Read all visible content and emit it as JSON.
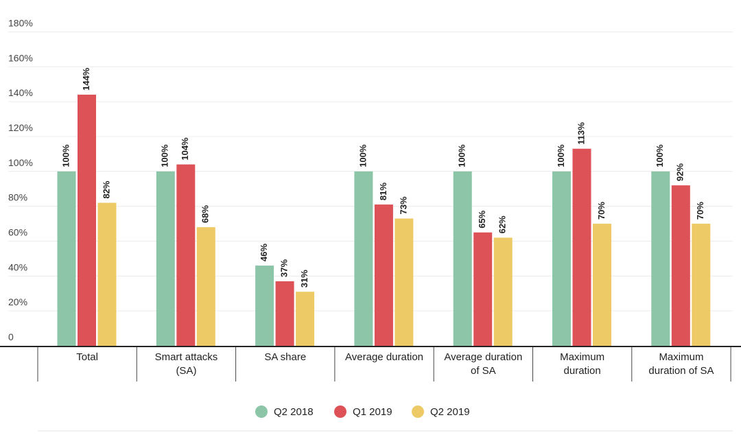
{
  "chart_data": {
    "type": "bar",
    "categories": [
      [
        "Total"
      ],
      [
        "Smart attacks",
        "(SA)"
      ],
      [
        "SA share"
      ],
      [
        "Average duration"
      ],
      [
        "Average duration",
        "of SA"
      ],
      [
        "Maximum",
        "duration"
      ],
      [
        "Maximum",
        "duration of SA"
      ]
    ],
    "series": [
      {
        "name": "Q2 2018",
        "color": "#8cc5a8",
        "values": [
          100,
          100,
          46,
          100,
          100,
          100,
          100
        ]
      },
      {
        "name": "Q1 2019",
        "color": "#dd5257",
        "values": [
          144,
          104,
          37,
          81,
          65,
          113,
          92
        ]
      },
      {
        "name": "Q2 2019",
        "color": "#eeca67",
        "values": [
          82,
          68,
          31,
          73,
          62,
          70,
          70
        ]
      }
    ],
    "ylim": [
      0,
      180
    ],
    "yticks": [
      0,
      20,
      40,
      60,
      80,
      100,
      120,
      140,
      160,
      180
    ],
    "ytick_labels": [
      "0",
      "20%",
      "40%",
      "60%",
      "80%",
      "100%",
      "120%",
      "140%",
      "160%",
      "180%"
    ],
    "value_suffix": "%",
    "grid": true,
    "legend_position": "bottom",
    "title": "",
    "xlabel": "",
    "ylabel": ""
  }
}
